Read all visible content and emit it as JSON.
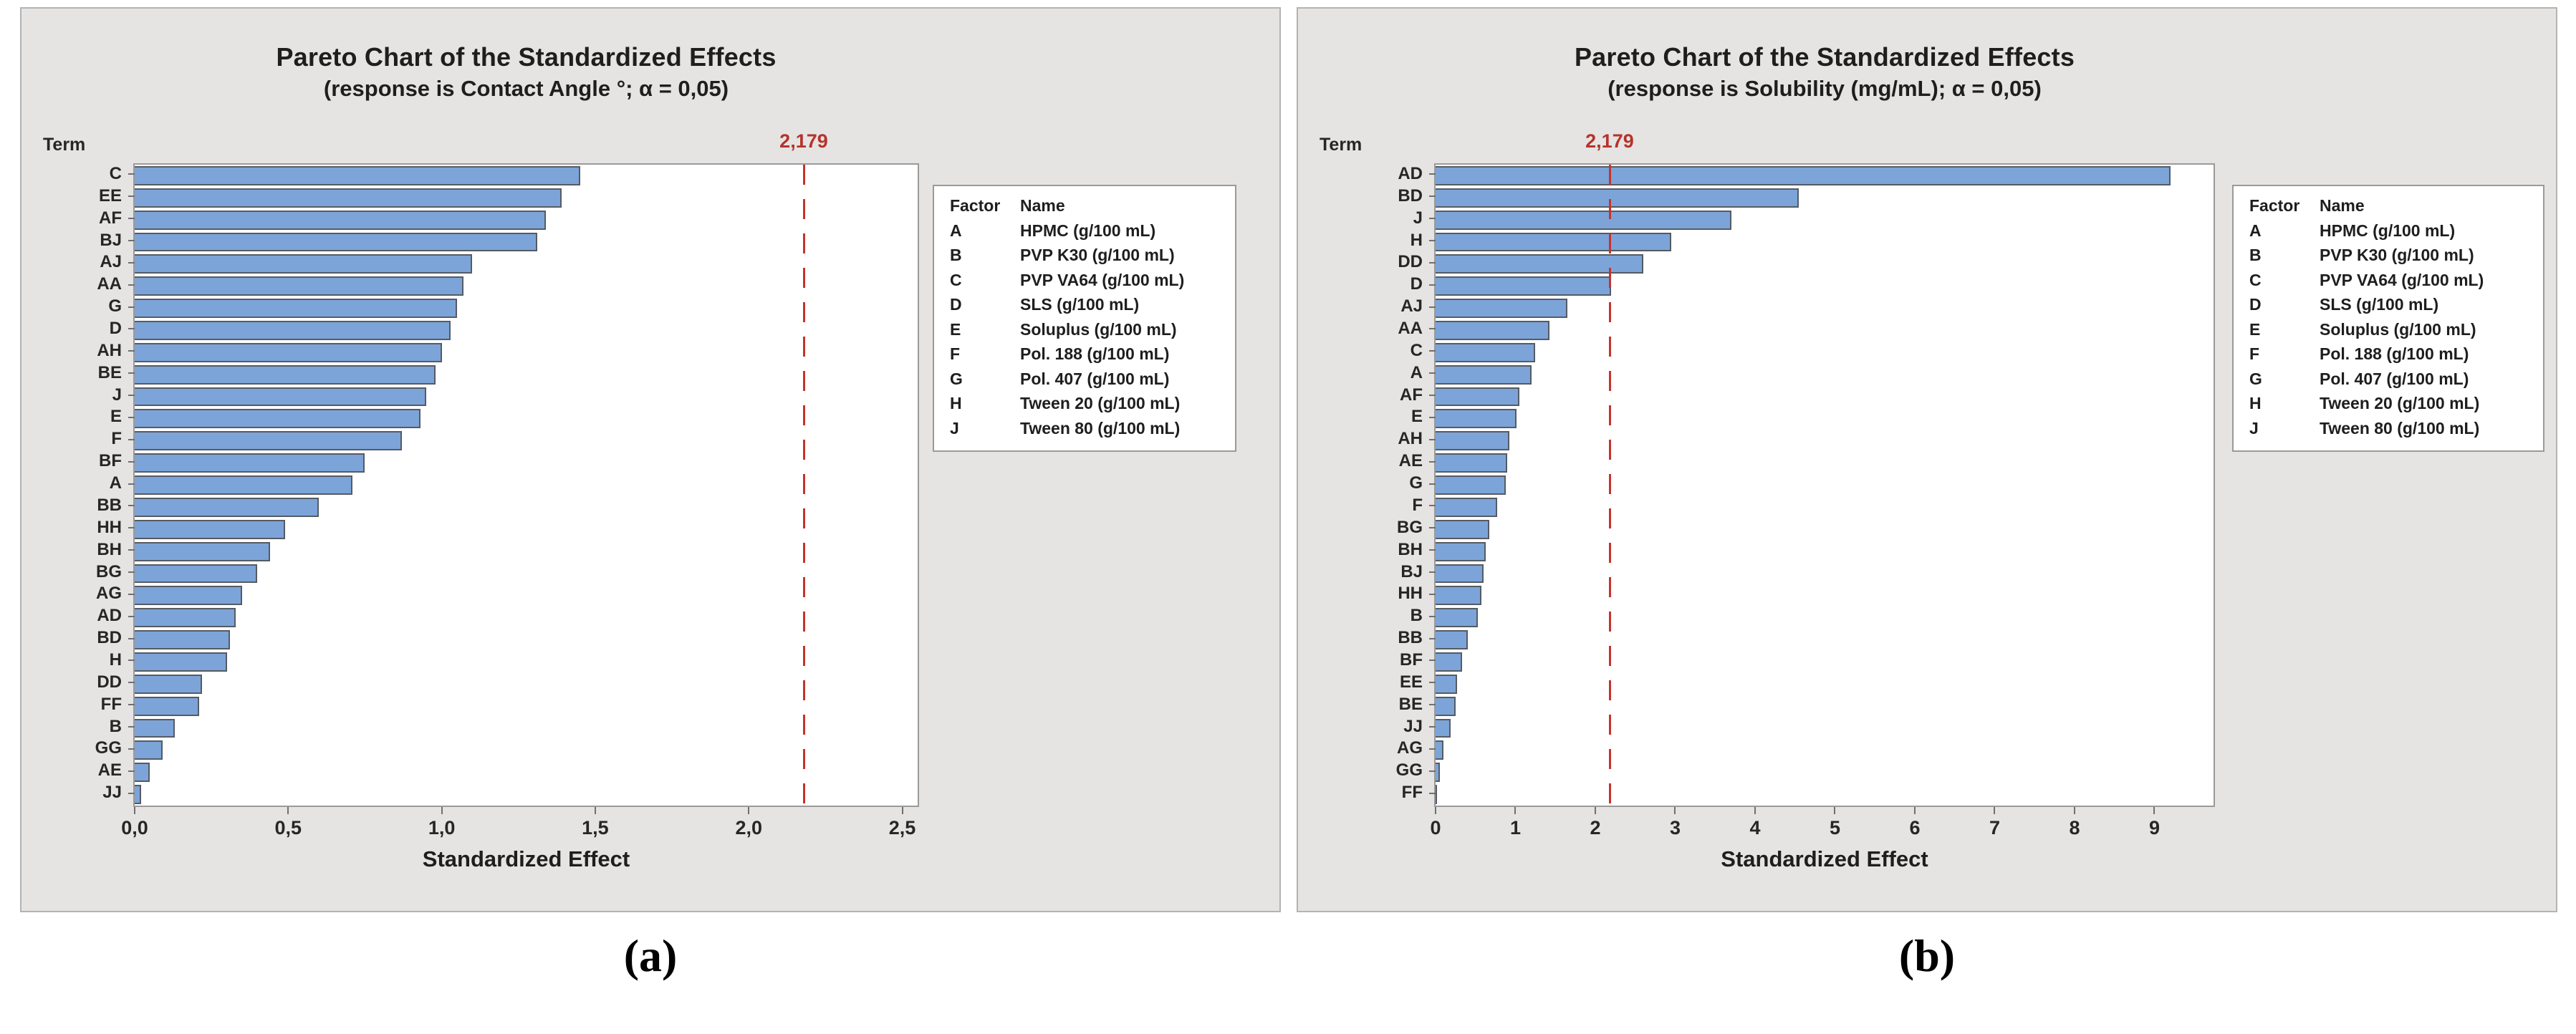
{
  "page": {
    "captions": [
      "(a)",
      "(b)"
    ]
  },
  "colors": {
    "bar_fill": "#7ca4d8",
    "bar_border": "#555b63",
    "reference_line": "#c5332d",
    "reference_label": "#b5332c",
    "panel_background": "#e5e4e2",
    "plot_background": "#ffffff",
    "text": "#1e1e1e"
  },
  "chart_data": [
    {
      "type": "bar",
      "orientation": "horizontal",
      "panel": "a",
      "title": "Pareto Chart of the Standardized Effects",
      "subtitle": "(response is Contact Angle °; α = 0,05)",
      "xlabel": "Standardized Effect",
      "ylabel": "Term",
      "grid": false,
      "legend_position": "right",
      "categories": [
        "C",
        "EE",
        "AF",
        "BJ",
        "AJ",
        "AA",
        "G",
        "D",
        "AH",
        "BE",
        "J",
        "E",
        "F",
        "BF",
        "A",
        "BB",
        "HH",
        "BH",
        "BG",
        "AG",
        "AD",
        "BD",
        "H",
        "DD",
        "FF",
        "B",
        "GG",
        "AE",
        "JJ"
      ],
      "values": [
        1.45,
        1.39,
        1.34,
        1.31,
        1.1,
        1.07,
        1.05,
        1.03,
        1.0,
        0.98,
        0.95,
        0.93,
        0.87,
        0.75,
        0.71,
        0.6,
        0.49,
        0.44,
        0.4,
        0.35,
        0.33,
        0.31,
        0.3,
        0.22,
        0.21,
        0.13,
        0.09,
        0.05,
        0.02
      ],
      "xlim": [
        0,
        2.55
      ],
      "xticks_values": [
        0,
        0.5,
        1.0,
        1.5,
        2.0,
        2.5
      ],
      "xticks_labels": [
        "0,0",
        "0,5",
        "1,0",
        "1,5",
        "2,0",
        "2,5"
      ],
      "reference_line": {
        "value": 2.179,
        "label": "2,179"
      },
      "legend_header": [
        "Factor",
        "Name"
      ],
      "legend_rows": [
        [
          "A",
          "HPMC (g/100 mL)"
        ],
        [
          "B",
          "PVP K30  (g/100 mL)"
        ],
        [
          "C",
          "PVP VA64  (g/100 mL)"
        ],
        [
          "D",
          "SLS  (g/100 mL)"
        ],
        [
          "E",
          "Soluplus  (g/100 mL)"
        ],
        [
          "F",
          "Pol. 188  (g/100 mL)"
        ],
        [
          "G",
          "Pol. 407  (g/100 mL)"
        ],
        [
          "H",
          "Tween 20  (g/100 mL)"
        ],
        [
          "J",
          "Tween 80  (g/100 mL)"
        ]
      ]
    },
    {
      "type": "bar",
      "orientation": "horizontal",
      "panel": "b",
      "title": "Pareto Chart of the Standardized Effects",
      "subtitle": "(response is Solubility (mg/mL); α = 0,05)",
      "xlabel": "Standardized Effect",
      "ylabel": "Term",
      "grid": false,
      "legend_position": "right",
      "categories": [
        "AD",
        "BD",
        "J",
        "H",
        "DD",
        "D",
        "AJ",
        "AA",
        "C",
        "A",
        "AF",
        "E",
        "AH",
        "AE",
        "G",
        "F",
        "BG",
        "BH",
        "BJ",
        "HH",
        "B",
        "BB",
        "BF",
        "EE",
        "BE",
        "JJ",
        "AG",
        "GG",
        "FF"
      ],
      "values": [
        9.2,
        4.55,
        3.7,
        2.95,
        2.6,
        2.2,
        1.65,
        1.43,
        1.25,
        1.2,
        1.05,
        1.01,
        0.92,
        0.9,
        0.88,
        0.77,
        0.67,
        0.63,
        0.6,
        0.57,
        0.53,
        0.4,
        0.33,
        0.27,
        0.25,
        0.19,
        0.1,
        0.05,
        0.02
      ],
      "xlim": [
        0,
        9.74
      ],
      "xticks_values": [
        0,
        1,
        2,
        3,
        4,
        5,
        6,
        7,
        8,
        9
      ],
      "xticks_labels": [
        "0",
        "1",
        "2",
        "3",
        "4",
        "5",
        "6",
        "7",
        "8",
        "9"
      ],
      "reference_line": {
        "value": 2.179,
        "label": "2,179"
      },
      "legend_header": [
        "Factor",
        "Name"
      ],
      "legend_rows": [
        [
          "A",
          "HPMC (g/100 mL)"
        ],
        [
          "B",
          "PVP K30  (g/100 mL)"
        ],
        [
          "C",
          "PVP VA64  (g/100 mL)"
        ],
        [
          "D",
          "SLS  (g/100 mL)"
        ],
        [
          "E",
          "Soluplus  (g/100 mL)"
        ],
        [
          "F",
          "Pol. 188  (g/100 mL)"
        ],
        [
          "G",
          "Pol. 407  (g/100 mL)"
        ],
        [
          "H",
          "Tween 20  (g/100 mL)"
        ],
        [
          "J",
          "Tween 80  (g/100 mL)"
        ]
      ]
    }
  ]
}
